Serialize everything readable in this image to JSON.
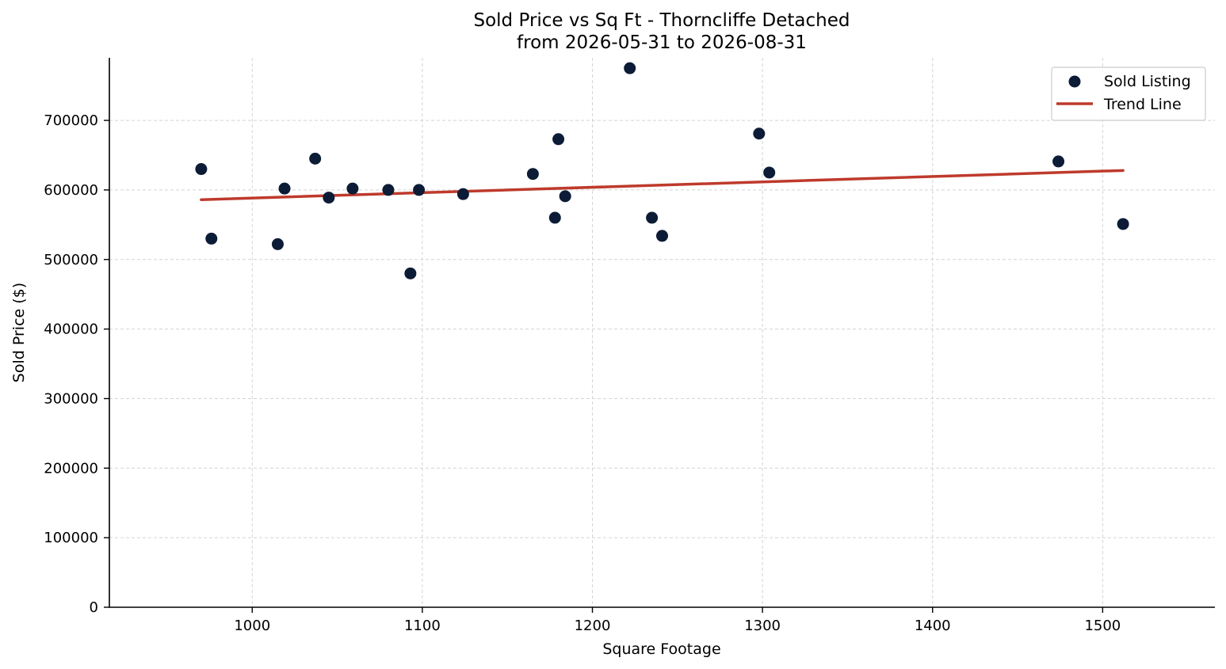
{
  "chart_data": {
    "type": "scatter",
    "title": "Sold Price vs Sq Ft - Thorncliffe Detached",
    "subtitle": "from 2026-05-31 to 2026-08-31",
    "xlabel": "Square Footage",
    "ylabel": "Sold Price ($)",
    "xlim": [
      916,
      1566
    ],
    "ylim": [
      0,
      790000
    ],
    "xticks": [
      1000,
      1100,
      1200,
      1300,
      1400,
      1500
    ],
    "yticks": [
      0,
      100000,
      200000,
      300000,
      400000,
      500000,
      600000,
      700000
    ],
    "grid": true,
    "legend_position": "top-right",
    "series": [
      {
        "name": "Sold Listing",
        "kind": "scatter",
        "color": "#0c1c36",
        "points": [
          [
            970,
            630000
          ],
          [
            976,
            530000
          ],
          [
            1015,
            522000
          ],
          [
            1019,
            602000
          ],
          [
            1037,
            645000
          ],
          [
            1045,
            589000
          ],
          [
            1059,
            602000
          ],
          [
            1080,
            600000
          ],
          [
            1093,
            480000
          ],
          [
            1098,
            600000
          ],
          [
            1124,
            594000
          ],
          [
            1165,
            623000
          ],
          [
            1178,
            560000
          ],
          [
            1180,
            673000
          ],
          [
            1184,
            591000
          ],
          [
            1222,
            775000
          ],
          [
            1235,
            560000
          ],
          [
            1241,
            534000
          ],
          [
            1298,
            681000
          ],
          [
            1304,
            625000
          ],
          [
            1474,
            641000
          ],
          [
            1512,
            551000
          ]
        ]
      },
      {
        "name": "Trend Line",
        "kind": "line",
        "color": "#be3a2c",
        "points": [
          [
            970,
            586000
          ],
          [
            1512,
            628000
          ]
        ]
      }
    ]
  }
}
